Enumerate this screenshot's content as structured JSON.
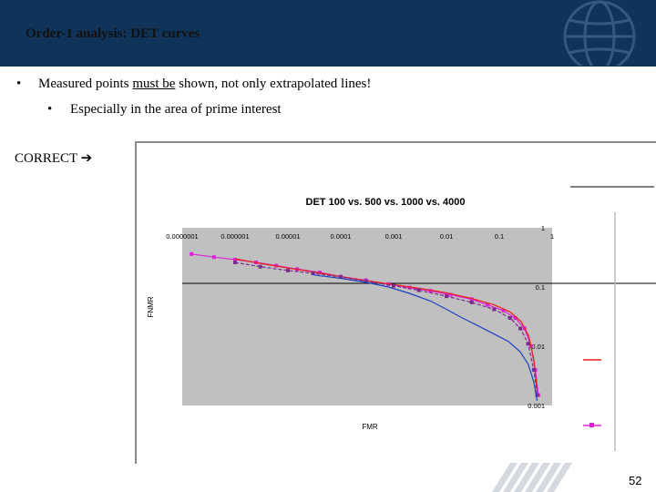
{
  "header": {
    "title": "Order-1 analysis: DET curves"
  },
  "bullets": [
    {
      "marker": "•",
      "text_before": "Measured points ",
      "underlined": "must be",
      "text_after": " shown, not only extrapolated lines!"
    },
    {
      "marker": "•",
      "text": "Especially in the area of prime interest"
    }
  ],
  "correct_label": "CORRECT",
  "correct_arrow": "➔",
  "page_number": "52",
  "colors": {
    "header_bg": "#0f3359",
    "plot_bg": "#c0c0c0",
    "series_red": "#e8201a",
    "series_magenta": "#e020d8",
    "series_purple": "#7a2e8c",
    "series_blue": "#2040c0"
  },
  "chart_data": {
    "type": "line",
    "title": "DET 100 vs. 500 vs. 1000 vs. 4000",
    "xlabel": "FMR",
    "ylabel": "FNMR",
    "x_scale": "log",
    "y_scale": "log",
    "xlim": [
      1e-07,
      1
    ],
    "ylim": [
      0.001,
      1
    ],
    "x_tick_labels": [
      "0.0000001",
      "0.000001",
      "0.00001",
      "0.0001",
      "0.001",
      "0.01",
      "0.1",
      "1"
    ],
    "y_tick_labels": [
      "1",
      "0.1",
      "0.01",
      "0.001"
    ],
    "grid": false,
    "series": [
      {
        "color_key": "series_magenta",
        "marker": "square",
        "x": [
          1.5e-07,
          4e-07,
          1e-06,
          2.5e-06,
          6e-06,
          1.5e-05,
          4e-05,
          0.0001,
          0.0003,
          0.0008,
          0.002,
          0.005,
          0.012,
          0.03,
          0.06,
          0.12,
          0.2,
          0.3,
          0.4,
          0.48,
          0.55
        ],
        "y": [
          0.36,
          0.32,
          0.29,
          0.26,
          0.23,
          0.2,
          0.176,
          0.15,
          0.13,
          0.112,
          0.098,
          0.086,
          0.074,
          0.062,
          0.05,
          0.04,
          0.03,
          0.02,
          0.01,
          0.004,
          0.0015
        ]
      },
      {
        "color_key": "series_red",
        "marker": "none",
        "x": [
          1e-06,
          3e-06,
          1e-05,
          3e-05,
          0.0001,
          0.0003,
          0.001,
          0.003,
          0.01,
          0.03,
          0.08,
          0.16,
          0.26,
          0.36,
          0.45,
          0.52
        ],
        "y": [
          0.3,
          0.25,
          0.21,
          0.18,
          0.15,
          0.128,
          0.11,
          0.095,
          0.08,
          0.064,
          0.05,
          0.038,
          0.026,
          0.015,
          0.006,
          0.0018
        ]
      },
      {
        "color_key": "series_purple",
        "marker": "square",
        "x": [
          1e-06,
          3e-06,
          1e-05,
          3e-05,
          0.0001,
          0.0003,
          0.001,
          0.003,
          0.01,
          0.03,
          0.08,
          0.16,
          0.25,
          0.35,
          0.45,
          0.52
        ],
        "y": [
          0.26,
          0.22,
          0.19,
          0.17,
          0.148,
          0.125,
          0.105,
          0.088,
          0.07,
          0.055,
          0.042,
          0.03,
          0.02,
          0.011,
          0.004,
          0.0015
        ]
      },
      {
        "color_key": "series_blue",
        "marker": "none",
        "x": [
          3e-05,
          0.0001,
          0.0003,
          0.0008,
          0.002,
          0.005,
          0.01,
          0.02,
          0.04,
          0.08,
          0.15,
          0.25,
          0.35,
          0.45,
          0.52
        ],
        "y": [
          0.16,
          0.14,
          0.12,
          0.1,
          0.078,
          0.058,
          0.042,
          0.03,
          0.022,
          0.016,
          0.012,
          0.008,
          0.005,
          0.0025,
          0.0012
        ]
      }
    ]
  }
}
